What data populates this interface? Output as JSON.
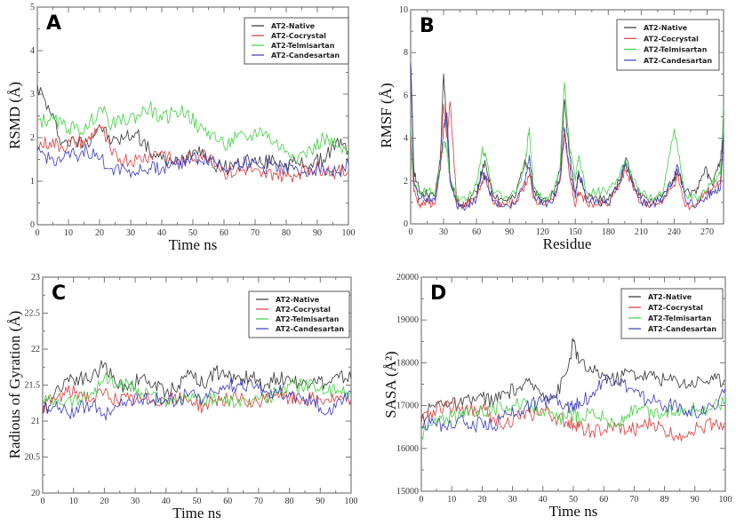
{
  "legend_labels": [
    "AT2-Native",
    "AT2-Cocrystal",
    "AT2-Telmisartan",
    "AT2-Candesartan"
  ],
  "series_colors": {
    "AT2-Native": "#333333",
    "AT2-Cocrystal": "#d93a3a",
    "AT2-Telmisartan": "#3ecf3e",
    "AT2-Candesartan": "#3a3ab8"
  },
  "chart_data": [
    {
      "panel": "A",
      "type": "line",
      "title": "",
      "xlabel": "Time ns",
      "ylabel": "RSMD (Å)",
      "xlim": [
        0,
        100
      ],
      "ylim": [
        0,
        5
      ],
      "xticks": [
        "0",
        "10",
        "20",
        "30",
        "40",
        "50",
        "60",
        "70",
        "80",
        "90",
        "100"
      ],
      "yticks": [
        "0",
        "1",
        "2",
        "3",
        "4",
        "5"
      ],
      "legend": "top-right",
      "x": [
        0,
        4,
        8,
        12,
        16,
        20,
        24,
        28,
        32,
        36,
        40,
        44,
        48,
        52,
        56,
        60,
        64,
        68,
        72,
        76,
        80,
        84,
        88,
        92,
        96,
        100
      ],
      "series": [
        {
          "name": "AT2-Native",
          "values": [
            3.2,
            2.6,
            1.9,
            1.9,
            1.9,
            2.3,
            1.9,
            2.0,
            2.1,
            1.7,
            1.5,
            1.4,
            1.6,
            1.8,
            1.4,
            1.3,
            1.4,
            1.5,
            1.4,
            1.5,
            1.4,
            1.4,
            1.4,
            1.5,
            1.9,
            1.7
          ]
        },
        {
          "name": "AT2-Cocrystal",
          "values": [
            1.8,
            1.9,
            1.8,
            1.9,
            1.9,
            2.3,
            1.6,
            1.5,
            1.5,
            1.6,
            1.7,
            1.4,
            1.5,
            1.6,
            1.6,
            1.2,
            1.2,
            1.3,
            1.1,
            1.2,
            1.1,
            1.2,
            1.3,
            1.3,
            1.2,
            1.2
          ]
        },
        {
          "name": "AT2-Telmisartan",
          "values": [
            2.4,
            2.4,
            2.3,
            2.2,
            2.2,
            2.7,
            2.3,
            2.4,
            2.5,
            2.7,
            2.4,
            2.6,
            2.6,
            2.2,
            2.1,
            1.8,
            2.0,
            2.0,
            2.2,
            1.9,
            1.7,
            1.6,
            1.7,
            2.0,
            1.8,
            1.6
          ]
        },
        {
          "name": "AT2-Candesartan",
          "values": [
            1.7,
            1.5,
            1.5,
            1.6,
            1.7,
            1.5,
            1.3,
            1.3,
            1.2,
            1.3,
            1.3,
            1.4,
            1.5,
            1.5,
            1.5,
            1.3,
            1.4,
            1.4,
            1.3,
            1.4,
            1.3,
            1.2,
            1.3,
            1.3,
            1.2,
            1.4
          ]
        }
      ]
    },
    {
      "panel": "B",
      "type": "line",
      "title": "",
      "xlabel": "Residue",
      "ylabel": "RMSF (Å)",
      "xlim": [
        0,
        285
      ],
      "ylim": [
        0,
        10
      ],
      "xticks": [
        "0",
        "30",
        "60",
        "90",
        "120",
        "150",
        "180",
        "210",
        "240",
        "270"
      ],
      "yticks": [
        "0",
        "2",
        "4",
        "6",
        "8",
        "10"
      ],
      "legend": "top-right",
      "x": [
        0,
        3,
        8,
        15,
        22,
        27,
        30,
        33,
        36,
        42,
        50,
        60,
        65,
        68,
        75,
        85,
        95,
        104,
        108,
        112,
        120,
        130,
        136,
        140,
        144,
        150,
        153,
        160,
        170,
        180,
        190,
        196,
        202,
        210,
        220,
        230,
        240,
        243,
        250,
        260,
        268,
        275,
        282,
        285
      ],
      "series": [
        {
          "name": "AT2-Native",
          "values": [
            7.5,
            2.5,
            1.5,
            1.4,
            1.3,
            3.0,
            7.0,
            4.5,
            2.0,
            1.0,
            1.0,
            1.5,
            2.5,
            2.8,
            1.4,
            1.1,
            1.2,
            3.0,
            2.6,
            1.5,
            1.1,
            1.4,
            2.5,
            5.8,
            3.5,
            1.5,
            2.3,
            1.3,
            1.2,
            1.1,
            2.0,
            2.8,
            2.0,
            1.2,
            1.1,
            1.4,
            2.0,
            2.5,
            1.5,
            1.4,
            2.6,
            1.8,
            3.0,
            4.0
          ]
        },
        {
          "name": "AT2-Cocrystal",
          "values": [
            4.0,
            1.5,
            0.9,
            1.0,
            0.9,
            3.0,
            5.6,
            4.0,
            5.7,
            1.0,
            0.8,
            1.2,
            2.0,
            2.3,
            1.0,
            0.9,
            1.0,
            1.8,
            2.3,
            1.2,
            0.9,
            1.1,
            2.0,
            4.2,
            2.5,
            0.8,
            1.5,
            1.0,
            0.9,
            0.9,
            1.8,
            2.5,
            1.8,
            1.0,
            0.9,
            1.1,
            1.8,
            2.3,
            0.8,
            0.9,
            1.5,
            1.6,
            1.9,
            3.8
          ]
        },
        {
          "name": "AT2-Telmisartan",
          "values": [
            4.5,
            1.8,
            1.4,
            1.6,
            1.3,
            2.8,
            3.8,
            3.5,
            2.0,
            1.2,
            1.1,
            1.8,
            3.5,
            3.3,
            1.5,
            1.2,
            1.4,
            2.6,
            4.5,
            1.6,
            1.2,
            1.5,
            2.6,
            6.6,
            4.0,
            2.0,
            3.2,
            1.5,
            1.5,
            1.6,
            2.2,
            2.9,
            2.1,
            1.4,
            1.2,
            1.5,
            4.4,
            3.6,
            1.4,
            1.2,
            1.5,
            2.0,
            2.3,
            5.5
          ]
        },
        {
          "name": "AT2-Candesartan",
          "values": [
            7.5,
            2.0,
            1.2,
            1.2,
            1.1,
            2.5,
            4.5,
            5.2,
            2.0,
            0.8,
            0.7,
            1.2,
            2.4,
            2.2,
            1.1,
            0.8,
            0.9,
            2.0,
            3.2,
            1.4,
            0.9,
            1.1,
            2.2,
            4.5,
            2.8,
            1.2,
            2.5,
            1.1,
            1.0,
            0.9,
            1.9,
            3.1,
            2.0,
            1.0,
            0.9,
            1.2,
            2.2,
            2.7,
            1.2,
            0.8,
            1.2,
            1.5,
            1.6,
            4.2
          ]
        }
      ]
    },
    {
      "panel": "C",
      "type": "line",
      "title": "",
      "xlabel": "Time ns",
      "ylabel": "Radious of Gyration (Å)",
      "xlim": [
        0,
        100
      ],
      "ylim": [
        20,
        23
      ],
      "xticks": [
        "0",
        "10",
        "20",
        "30",
        "40",
        "50",
        "60",
        "70",
        "80",
        "90",
        "100"
      ],
      "yticks": [
        "20",
        "20.5",
        "21",
        "21.5",
        "22",
        "22.5",
        "23"
      ],
      "legend": "top-right",
      "x": [
        0,
        4,
        8,
        12,
        16,
        20,
        24,
        28,
        32,
        36,
        40,
        44,
        48,
        52,
        56,
        60,
        64,
        68,
        72,
        76,
        80,
        84,
        88,
        92,
        96,
        100
      ],
      "series": [
        {
          "name": "AT2-Native",
          "values": [
            21.1,
            21.4,
            21.6,
            21.6,
            21.6,
            21.8,
            21.5,
            21.5,
            21.6,
            21.5,
            21.4,
            21.5,
            21.7,
            21.5,
            21.7,
            21.6,
            21.6,
            21.6,
            21.5,
            21.6,
            21.6,
            21.5,
            21.6,
            21.5,
            21.6,
            21.6
          ]
        },
        {
          "name": "AT2-Cocrystal",
          "values": [
            21.2,
            21.3,
            21.4,
            21.4,
            21.3,
            21.4,
            21.3,
            21.3,
            21.3,
            21.3,
            21.3,
            21.3,
            21.3,
            21.2,
            21.3,
            21.3,
            21.3,
            21.2,
            21.3,
            21.4,
            21.3,
            21.3,
            21.3,
            21.3,
            21.3,
            21.3
          ]
        },
        {
          "name": "AT2-Telmisartan",
          "values": [
            21.3,
            21.3,
            21.3,
            21.3,
            21.4,
            21.6,
            21.5,
            21.5,
            21.4,
            21.4,
            21.2,
            21.3,
            21.3,
            21.3,
            21.3,
            21.3,
            21.2,
            21.3,
            21.3,
            21.4,
            21.5,
            21.5,
            21.5,
            21.4,
            21.4,
            21.4
          ]
        },
        {
          "name": "AT2-Candesartan",
          "values": [
            21.2,
            21.2,
            21.1,
            21.2,
            21.2,
            21.1,
            21.2,
            21.3,
            21.3,
            21.3,
            21.3,
            21.3,
            21.4,
            21.3,
            21.4,
            21.5,
            21.5,
            21.5,
            21.4,
            21.4,
            21.4,
            21.3,
            21.3,
            21.1,
            21.3,
            21.4
          ]
        }
      ]
    },
    {
      "panel": "D",
      "type": "line",
      "title": "",
      "xlabel": "Time ns",
      "ylabel": "SASA (Å²)",
      "xlim": [
        0,
        100
      ],
      "ylim": [
        15000,
        20000
      ],
      "xticks": [
        "0",
        "10",
        "20",
        "30",
        "40",
        "50",
        "60",
        "70",
        "89",
        "90",
        "100"
      ],
      "yticks": [
        "15000",
        "16000",
        "17000",
        "18000",
        "19000",
        "20000"
      ],
      "legend": "top-right",
      "x": [
        0,
        4,
        8,
        12,
        16,
        20,
        24,
        28,
        32,
        36,
        40,
        44,
        48,
        50,
        52,
        56,
        60,
        64,
        68,
        72,
        76,
        80,
        84,
        88,
        92,
        96,
        100
      ],
      "series": [
        {
          "name": "AT2-Native",
          "values": [
            16700,
            17000,
            17100,
            17000,
            17100,
            17200,
            17100,
            17300,
            17400,
            17500,
            17300,
            17200,
            17800,
            18500,
            18000,
            17800,
            17700,
            17600,
            17800,
            17700,
            17700,
            17600,
            17600,
            17500,
            17600,
            17600,
            17600
          ]
        },
        {
          "name": "AT2-Cocrystal",
          "values": [
            16600,
            16900,
            17000,
            17000,
            16900,
            16900,
            16700,
            16600,
            16700,
            16800,
            16900,
            16700,
            16600,
            16600,
            16500,
            16400,
            16400,
            16500,
            16400,
            16500,
            16600,
            16400,
            16300,
            16400,
            16500,
            16600,
            16600
          ]
        },
        {
          "name": "AT2-Telmisartan",
          "values": [
            16300,
            16600,
            16700,
            16700,
            16900,
            16900,
            16900,
            17000,
            17000,
            17000,
            16900,
            16700,
            16700,
            16800,
            16700,
            16900,
            16700,
            16500,
            16800,
            16900,
            16800,
            16800,
            16900,
            16900,
            16900,
            17000,
            17100
          ]
        },
        {
          "name": "AT2-Candesartan",
          "values": [
            16500,
            16600,
            16500,
            16700,
            16500,
            16600,
            16500,
            16800,
            16900,
            17000,
            17100,
            17200,
            17000,
            17000,
            17100,
            17200,
            17600,
            17600,
            17400,
            17200,
            17100,
            17000,
            17000,
            16900,
            16800,
            17000,
            17400
          ]
        }
      ]
    }
  ]
}
